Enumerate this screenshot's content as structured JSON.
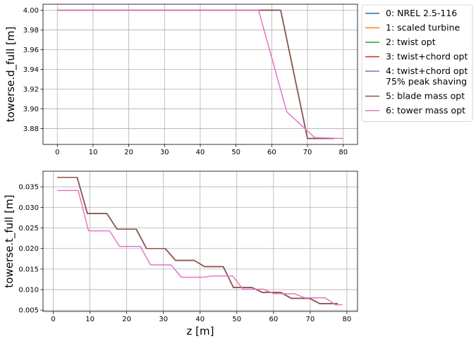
{
  "chart_data": [
    {
      "type": "line",
      "title": "",
      "xlabel": "",
      "ylabel": "towerse.d_full [m]",
      "xlim": [
        -4,
        84
      ],
      "ylim": [
        3.864,
        4.006
      ],
      "xticks": [
        0,
        10,
        20,
        30,
        40,
        50,
        60,
        70,
        80
      ],
      "yticks": [
        3.88,
        3.9,
        3.92,
        3.94,
        3.96,
        3.98,
        4.0
      ],
      "ytick_labels": [
        "3.88",
        "3.90",
        "3.92",
        "3.94",
        "3.96",
        "3.98",
        "4.00"
      ],
      "grid": true,
      "series": [
        {
          "name": "0: NREL 2.5-116",
          "color": "#1f77b4",
          "x": [
            0,
            62.5,
            70,
            77.5
          ],
          "y": [
            4.0,
            4.0,
            3.87,
            3.87
          ]
        },
        {
          "name": "1: scaled turbine",
          "color": "#ff7f0e",
          "x": [
            0,
            62.5,
            70,
            77.5
          ],
          "y": [
            4.0,
            4.0,
            3.87,
            3.87
          ]
        },
        {
          "name": "2: twist opt",
          "color": "#2ca02c",
          "x": [
            0,
            62.5,
            70,
            77.5
          ],
          "y": [
            4.0,
            4.0,
            3.87,
            3.87
          ]
        },
        {
          "name": "3: twist+chord opt",
          "color": "#d62728",
          "x": [
            0,
            62.5,
            70,
            77.5
          ],
          "y": [
            4.0,
            4.0,
            3.87,
            3.87
          ]
        },
        {
          "name": "4: twist+chord opt\n75% peak shaving",
          "color": "#9467bd",
          "x": [
            0,
            62.5,
            70,
            77.5
          ],
          "y": [
            4.0,
            4.0,
            3.87,
            3.87
          ]
        },
        {
          "name": "5: blade mass opt",
          "color": "#8c564b",
          "x": [
            0,
            62.5,
            70,
            77.5
          ],
          "y": [
            4.0,
            4.0,
            3.87,
            3.87
          ]
        },
        {
          "name": "6: tower mass opt",
          "color": "#e377c2",
          "x": [
            0,
            56.3,
            64.2,
            72,
            80
          ],
          "y": [
            4.0,
            4.0,
            3.897,
            3.871,
            3.87
          ]
        }
      ],
      "legend": "outside-right"
    },
    {
      "type": "line",
      "title": "",
      "xlabel": "z [m]",
      "ylabel": "towerse.t_full [m]",
      "xlim": [
        -2.8,
        82.9
      ],
      "ylim": [
        0.0047,
        0.0388
      ],
      "xticks": [
        0,
        10,
        20,
        30,
        40,
        50,
        60,
        70,
        80
      ],
      "yticks": [
        0.005,
        0.01,
        0.015,
        0.02,
        0.025,
        0.03,
        0.035
      ],
      "ytick_labels": [
        "0.005",
        "0.010",
        "0.015",
        "0.020",
        "0.025",
        "0.030",
        "0.035"
      ],
      "grid": true,
      "series": [
        {
          "name": "0: NREL 2.5-116",
          "color": "#1f77b4",
          "x": [
            1.1,
            6.5,
            9.3,
            14.6,
            17.4,
            22.6,
            25.4,
            30.5,
            33.3,
            38.4,
            41.2,
            46.3,
            49.1,
            54.2,
            57.0,
            62.0,
            64.8,
            69.8,
            72.6,
            77.5
          ],
          "y": [
            0.0373,
            0.0373,
            0.0285,
            0.0285,
            0.0247,
            0.0247,
            0.02,
            0.02,
            0.0171,
            0.0171,
            0.0156,
            0.0156,
            0.0105,
            0.0105,
            0.0093,
            0.0093,
            0.0079,
            0.0079,
            0.0066,
            0.0066
          ]
        },
        {
          "name": "1: scaled turbine",
          "color": "#ff7f0e",
          "x": [
            1.1,
            6.5,
            9.3,
            14.6,
            17.4,
            22.6,
            25.4,
            30.5,
            33.3,
            38.4,
            41.2,
            46.3,
            49.1,
            54.2,
            57.0,
            62.0,
            64.8,
            69.8,
            72.6,
            77.5
          ],
          "y": [
            0.0373,
            0.0373,
            0.0285,
            0.0285,
            0.0247,
            0.0247,
            0.02,
            0.02,
            0.0171,
            0.0171,
            0.0156,
            0.0156,
            0.0105,
            0.0105,
            0.0093,
            0.0093,
            0.0079,
            0.0079,
            0.0066,
            0.0066
          ]
        },
        {
          "name": "2: twist opt",
          "color": "#2ca02c",
          "x": [
            1.1,
            6.5,
            9.3,
            14.6,
            17.4,
            22.6,
            25.4,
            30.5,
            33.3,
            38.4,
            41.2,
            46.3,
            49.1,
            54.2,
            57.0,
            62.0,
            64.8,
            69.8,
            72.6,
            77.5
          ],
          "y": [
            0.0373,
            0.0373,
            0.0285,
            0.0285,
            0.0247,
            0.0247,
            0.02,
            0.02,
            0.0171,
            0.0171,
            0.0156,
            0.0156,
            0.0105,
            0.0105,
            0.0093,
            0.0093,
            0.0079,
            0.0079,
            0.0066,
            0.0066
          ]
        },
        {
          "name": "3: twist+chord opt",
          "color": "#d62728",
          "x": [
            1.1,
            6.5,
            9.3,
            14.6,
            17.4,
            22.6,
            25.4,
            30.5,
            33.3,
            38.4,
            41.2,
            46.3,
            49.1,
            54.2,
            57.0,
            62.0,
            64.8,
            69.8,
            72.6,
            77.5
          ],
          "y": [
            0.0373,
            0.0373,
            0.0285,
            0.0285,
            0.0247,
            0.0247,
            0.02,
            0.02,
            0.0171,
            0.0171,
            0.0156,
            0.0156,
            0.0105,
            0.0105,
            0.0093,
            0.0093,
            0.0079,
            0.0079,
            0.0066,
            0.0066
          ]
        },
        {
          "name": "4: twist+chord opt\n75% peak shaving",
          "color": "#9467bd",
          "x": [
            1.1,
            6.5,
            9.3,
            14.6,
            17.4,
            22.6,
            25.4,
            30.5,
            33.3,
            38.4,
            41.2,
            46.3,
            49.1,
            54.2,
            57.0,
            62.0,
            64.8,
            69.8,
            72.6,
            77.5
          ],
          "y": [
            0.0373,
            0.0373,
            0.0285,
            0.0285,
            0.0247,
            0.0247,
            0.02,
            0.02,
            0.0171,
            0.0171,
            0.0156,
            0.0156,
            0.0105,
            0.0105,
            0.0093,
            0.0093,
            0.0079,
            0.0079,
            0.0066,
            0.0066
          ]
        },
        {
          "name": "5: blade mass opt",
          "color": "#8c564b",
          "x": [
            1.1,
            6.5,
            9.3,
            14.6,
            17.4,
            22.6,
            25.4,
            30.5,
            33.3,
            38.4,
            41.2,
            46.3,
            49.1,
            54.2,
            57.0,
            62.0,
            64.8,
            69.8,
            72.6,
            77.5
          ],
          "y": [
            0.0373,
            0.0373,
            0.0285,
            0.0285,
            0.0247,
            0.0247,
            0.02,
            0.02,
            0.0171,
            0.0171,
            0.0156,
            0.0156,
            0.0105,
            0.0105,
            0.0093,
            0.0093,
            0.0079,
            0.0079,
            0.0066,
            0.0066
          ]
        },
        {
          "name": "6: tower mass opt",
          "color": "#e377c2",
          "x": [
            1.1,
            6.8,
            9.6,
            15.3,
            18.1,
            23.7,
            26.5,
            32.1,
            34.9,
            40.5,
            43.3,
            48.9,
            51.7,
            57.3,
            60.1,
            65.7,
            68.5,
            74.1,
            76.9,
            78.8
          ],
          "y": [
            0.0341,
            0.0341,
            0.0243,
            0.0243,
            0.0205,
            0.0205,
            0.016,
            0.016,
            0.013,
            0.013,
            0.0133,
            0.0133,
            0.0101,
            0.0101,
            0.009,
            0.009,
            0.008,
            0.008,
            0.0063,
            0.0063
          ]
        }
      ],
      "legend": "none"
    }
  ]
}
